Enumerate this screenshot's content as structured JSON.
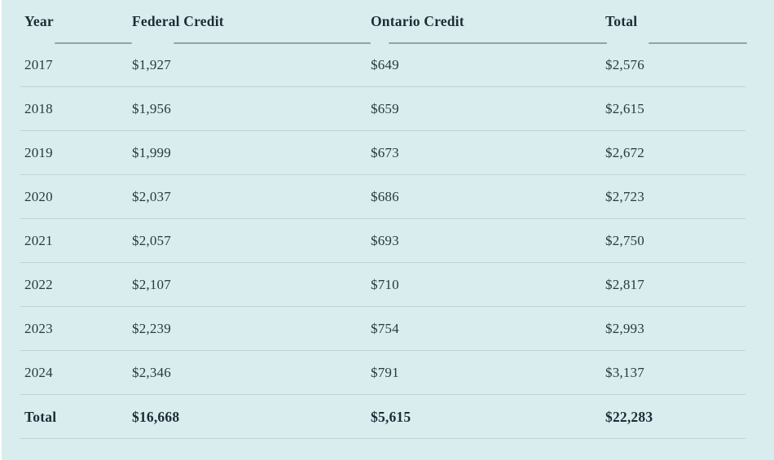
{
  "table": {
    "columns": [
      {
        "label": "Year"
      },
      {
        "label": "Federal Credit"
      },
      {
        "label": "Ontario Credit"
      },
      {
        "label": "Total"
      }
    ],
    "rows": [
      {
        "year": "2017",
        "federal": "$1,927",
        "ontario": "$649",
        "total": "$2,576"
      },
      {
        "year": "2018",
        "federal": "$1,956",
        "ontario": "$659",
        "total": "$2,615"
      },
      {
        "year": "2019",
        "federal": "$1,999",
        "ontario": "$673",
        "total": "$2,672"
      },
      {
        "year": "2020",
        "federal": "$2,037",
        "ontario": "$686",
        "total": "$2,723"
      },
      {
        "year": "2021",
        "federal": "$2,057",
        "ontario": "$693",
        "total": "$2,750"
      },
      {
        "year": "2022",
        "federal": "$2,107",
        "ontario": "$710",
        "total": "$2,817"
      },
      {
        "year": "2023",
        "federal": "$2,239",
        "ontario": "$754",
        "total": "$2,993"
      },
      {
        "year": "2024",
        "federal": "$2,346",
        "ontario": "$791",
        "total": "$3,137"
      }
    ],
    "total_row": {
      "label": "Total",
      "federal": "$16,668",
      "ontario": "$5,615",
      "total": "$22,283"
    }
  },
  "chart_data": {
    "type": "table",
    "title": "",
    "columns": [
      "Year",
      "Federal Credit",
      "Ontario Credit",
      "Total"
    ],
    "rows": [
      [
        "2017",
        "$1,927",
        "$649",
        "$2,576"
      ],
      [
        "2018",
        "$1,956",
        "$659",
        "$2,615"
      ],
      [
        "2019",
        "$1,999",
        "$673",
        "$2,672"
      ],
      [
        "2020",
        "$2,037",
        "$686",
        "$2,723"
      ],
      [
        "2021",
        "$2,057",
        "$693",
        "$2,750"
      ],
      [
        "2022",
        "$2,107",
        "$710",
        "$2,817"
      ],
      [
        "2023",
        "$2,239",
        "$754",
        "$2,993"
      ],
      [
        "2024",
        "$2,346",
        "$791",
        "$3,137"
      ],
      [
        "Total",
        "$16,668",
        "$5,615",
        "$22,283"
      ]
    ]
  },
  "colors": {
    "bg": "#d9edee",
    "text": "#2a3840",
    "text_strong": "#1e2c36",
    "line_header": "#93a3a7",
    "line_row": "#c3d2d4",
    "edge": "#fdfefe"
  }
}
